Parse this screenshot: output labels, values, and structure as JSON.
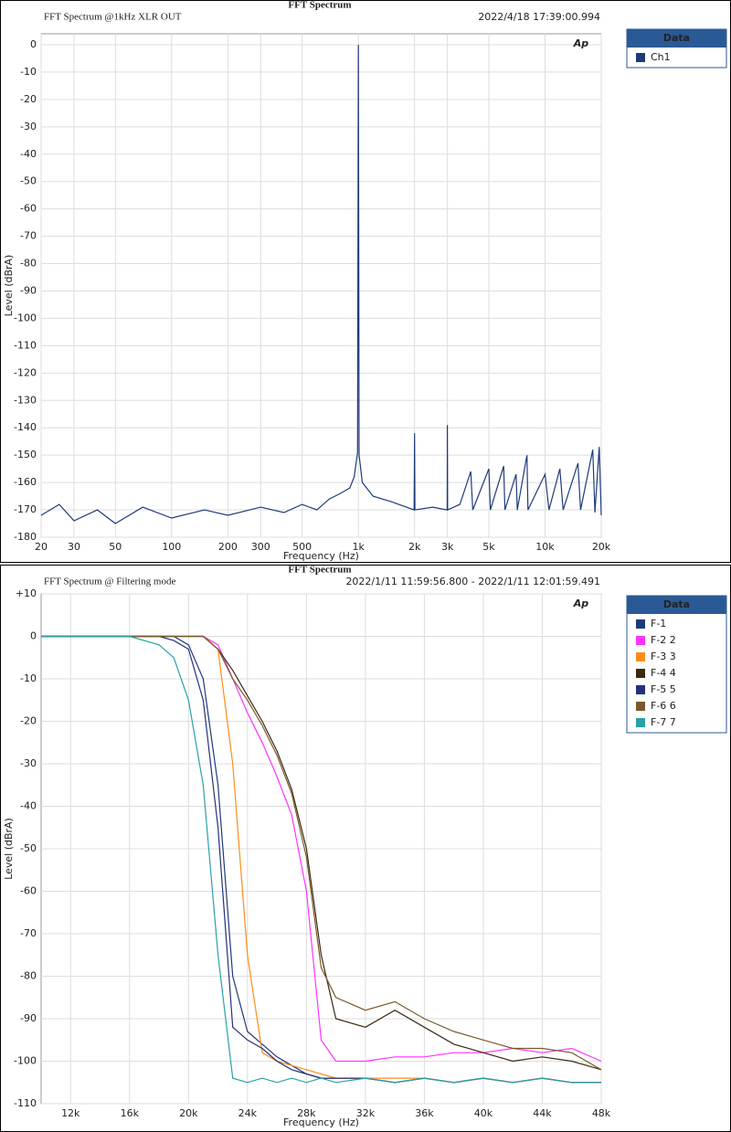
{
  "chart_data": [
    {
      "type": "line",
      "header": "FFT Spectrum",
      "title": "FFT Spectrum @1kHz XLR OUT",
      "timestamp": "2022/4/18 17:39:00.994",
      "logo": "Ap",
      "xlabel": "Frequency (Hz)",
      "ylabel": "Level (dBrA)",
      "legend_title": "Data",
      "xlog": true,
      "grid": true,
      "xlim": [
        20,
        20000
      ],
      "ylim": [
        -180,
        4
      ],
      "xticks": [
        20,
        30,
        50,
        100,
        200,
        300,
        500,
        {
          "value": 1000,
          "label": "1k"
        },
        {
          "value": 2000,
          "label": "2k"
        },
        {
          "value": 3000,
          "label": "3k"
        },
        {
          "value": 5000,
          "label": "5k"
        },
        {
          "value": 10000,
          "label": "10k"
        },
        {
          "value": 20000,
          "label": "20k"
        }
      ],
      "yticks": [
        0,
        -10,
        -20,
        -30,
        -40,
        -50,
        -60,
        -70,
        -80,
        -90,
        -100,
        -110,
        -120,
        -130,
        -140,
        -150,
        -160,
        -170,
        -180
      ],
      "x": [
        20,
        25,
        30,
        40,
        50,
        70,
        100,
        150,
        200,
        300,
        400,
        500,
        600,
        700,
        800,
        900,
        950,
        990,
        1000,
        1010,
        1050,
        1200,
        1500,
        1990,
        2000,
        2010,
        2500,
        2990,
        3000,
        3010,
        3500,
        4000,
        4100,
        5000,
        5100,
        6000,
        6100,
        7000,
        7100,
        8000,
        8100,
        10000,
        10500,
        12000,
        12500,
        15000,
        15500,
        18000,
        18500,
        19500,
        20000
      ],
      "series": [
        {
          "name": "Ch1",
          "color": "#1f3a7a",
          "values": [
            -172,
            -168,
            -174,
            -170,
            -175,
            -169,
            -173,
            -170,
            -172,
            -169,
            -171,
            -168,
            -170,
            -166,
            -164,
            -162,
            -158,
            -149,
            0,
            -150,
            -160,
            -165,
            -167,
            -170,
            -142,
            -170,
            -169,
            -170,
            -139,
            -170,
            -168,
            -156,
            -170,
            -155,
            -170,
            -154,
            -170,
            -157,
            -170,
            -150,
            -170,
            -157,
            -170,
            -155,
            -170,
            -153,
            -170,
            -148,
            -171,
            -147,
            -172
          ]
        }
      ]
    },
    {
      "type": "line",
      "header": "FFT Spectrum",
      "title": "FFT Spectrum @ Filtering mode",
      "timestamp": "2022/1/11 11:59:56.800 - 2022/1/11 12:01:59.491",
      "logo": "Ap",
      "xlabel": "Frequency (Hz)",
      "ylabel": "Level (dBrA)",
      "legend_title": "Data",
      "xlog": false,
      "grid": true,
      "xlim": [
        10000,
        48000
      ],
      "ylim": [
        -110,
        10
      ],
      "xticks": [
        {
          "value": 12000,
          "label": "12k"
        },
        {
          "value": 16000,
          "label": "16k"
        },
        {
          "value": 20000,
          "label": "20k"
        },
        {
          "value": 24000,
          "label": "24k"
        },
        {
          "value": 28000,
          "label": "28k"
        },
        {
          "value": 32000,
          "label": "32k"
        },
        {
          "value": 36000,
          "label": "36k"
        },
        {
          "value": 40000,
          "label": "40k"
        },
        {
          "value": 44000,
          "label": "44k"
        },
        {
          "value": 48000,
          "label": "48k"
        }
      ],
      "yticks": [
        {
          "value": 10,
          "label": "+10"
        },
        0,
        -10,
        -20,
        -30,
        -40,
        -50,
        -60,
        -70,
        -80,
        -90,
        -100,
        -110
      ],
      "x": [
        10000,
        12000,
        14000,
        16000,
        18000,
        19000,
        20000,
        21000,
        22000,
        23000,
        24000,
        25000,
        26000,
        27000,
        28000,
        29000,
        30000,
        32000,
        34000,
        36000,
        38000,
        40000,
        42000,
        44000,
        46000,
        48000
      ],
      "series": [
        {
          "name": "F-1",
          "color": "#1f3a7a",
          "values": [
            0,
            0,
            0,
            0,
            0,
            0,
            -2,
            -10,
            -35,
            -80,
            -93,
            -96,
            -99,
            -101,
            -103,
            -104,
            -104,
            -104,
            -105,
            -104,
            -105,
            -104,
            -105,
            -104,
            -105,
            -105
          ]
        },
        {
          "name": "F-2 2",
          "color": "#ff33ff",
          "values": [
            0,
            0,
            0,
            0,
            0,
            0,
            0,
            0,
            -2,
            -10,
            -18,
            -25,
            -33,
            -42,
            -60,
            -95,
            -100,
            -100,
            -99,
            -99,
            -98,
            -98,
            -97,
            -98,
            -97,
            -100
          ]
        },
        {
          "name": "F-3 3",
          "color": "#ff8c1a",
          "values": [
            0,
            0,
            0,
            0,
            0,
            0,
            0,
            0,
            -3,
            -30,
            -75,
            -98,
            -100,
            -101,
            -102,
            -103,
            -104,
            -104,
            -104,
            -104,
            -105,
            -104,
            -105,
            -104,
            -105,
            -105
          ]
        },
        {
          "name": "F-4 4",
          "color": "#3a2a10",
          "values": [
            0,
            0,
            0,
            0,
            0,
            0,
            0,
            0,
            -3,
            -8,
            -14,
            -20,
            -27,
            -36,
            -50,
            -75,
            -90,
            -92,
            -88,
            -92,
            -96,
            -98,
            -100,
            -99,
            -100,
            -102
          ]
        },
        {
          "name": "F-5 5",
          "color": "#26307a",
          "values": [
            0,
            0,
            0,
            0,
            0,
            -1,
            -3,
            -15,
            -45,
            -92,
            -95,
            -97,
            -100,
            -102,
            -103,
            -104,
            -104,
            -104,
            -105,
            -104,
            -105,
            -104,
            -105,
            -104,
            -105,
            -105
          ]
        },
        {
          "name": "F-6 6",
          "color": "#7a5a2a",
          "values": [
            0,
            0,
            0,
            0,
            0,
            0,
            0,
            0,
            -3,
            -10,
            -15,
            -21,
            -28,
            -37,
            -52,
            -78,
            -85,
            -88,
            -86,
            -90,
            -93,
            -95,
            -97,
            -97,
            -98,
            -102
          ]
        },
        {
          "name": "F-7 7",
          "color": "#2aa0a8",
          "values": [
            0,
            0,
            0,
            0,
            -2,
            -5,
            -15,
            -35,
            -75,
            -104,
            -105,
            -104,
            -105,
            -104,
            -105,
            -104,
            -105,
            -104,
            -105,
            -104,
            -105,
            -104,
            -105,
            -104,
            -105,
            -105
          ]
        }
      ]
    }
  ]
}
